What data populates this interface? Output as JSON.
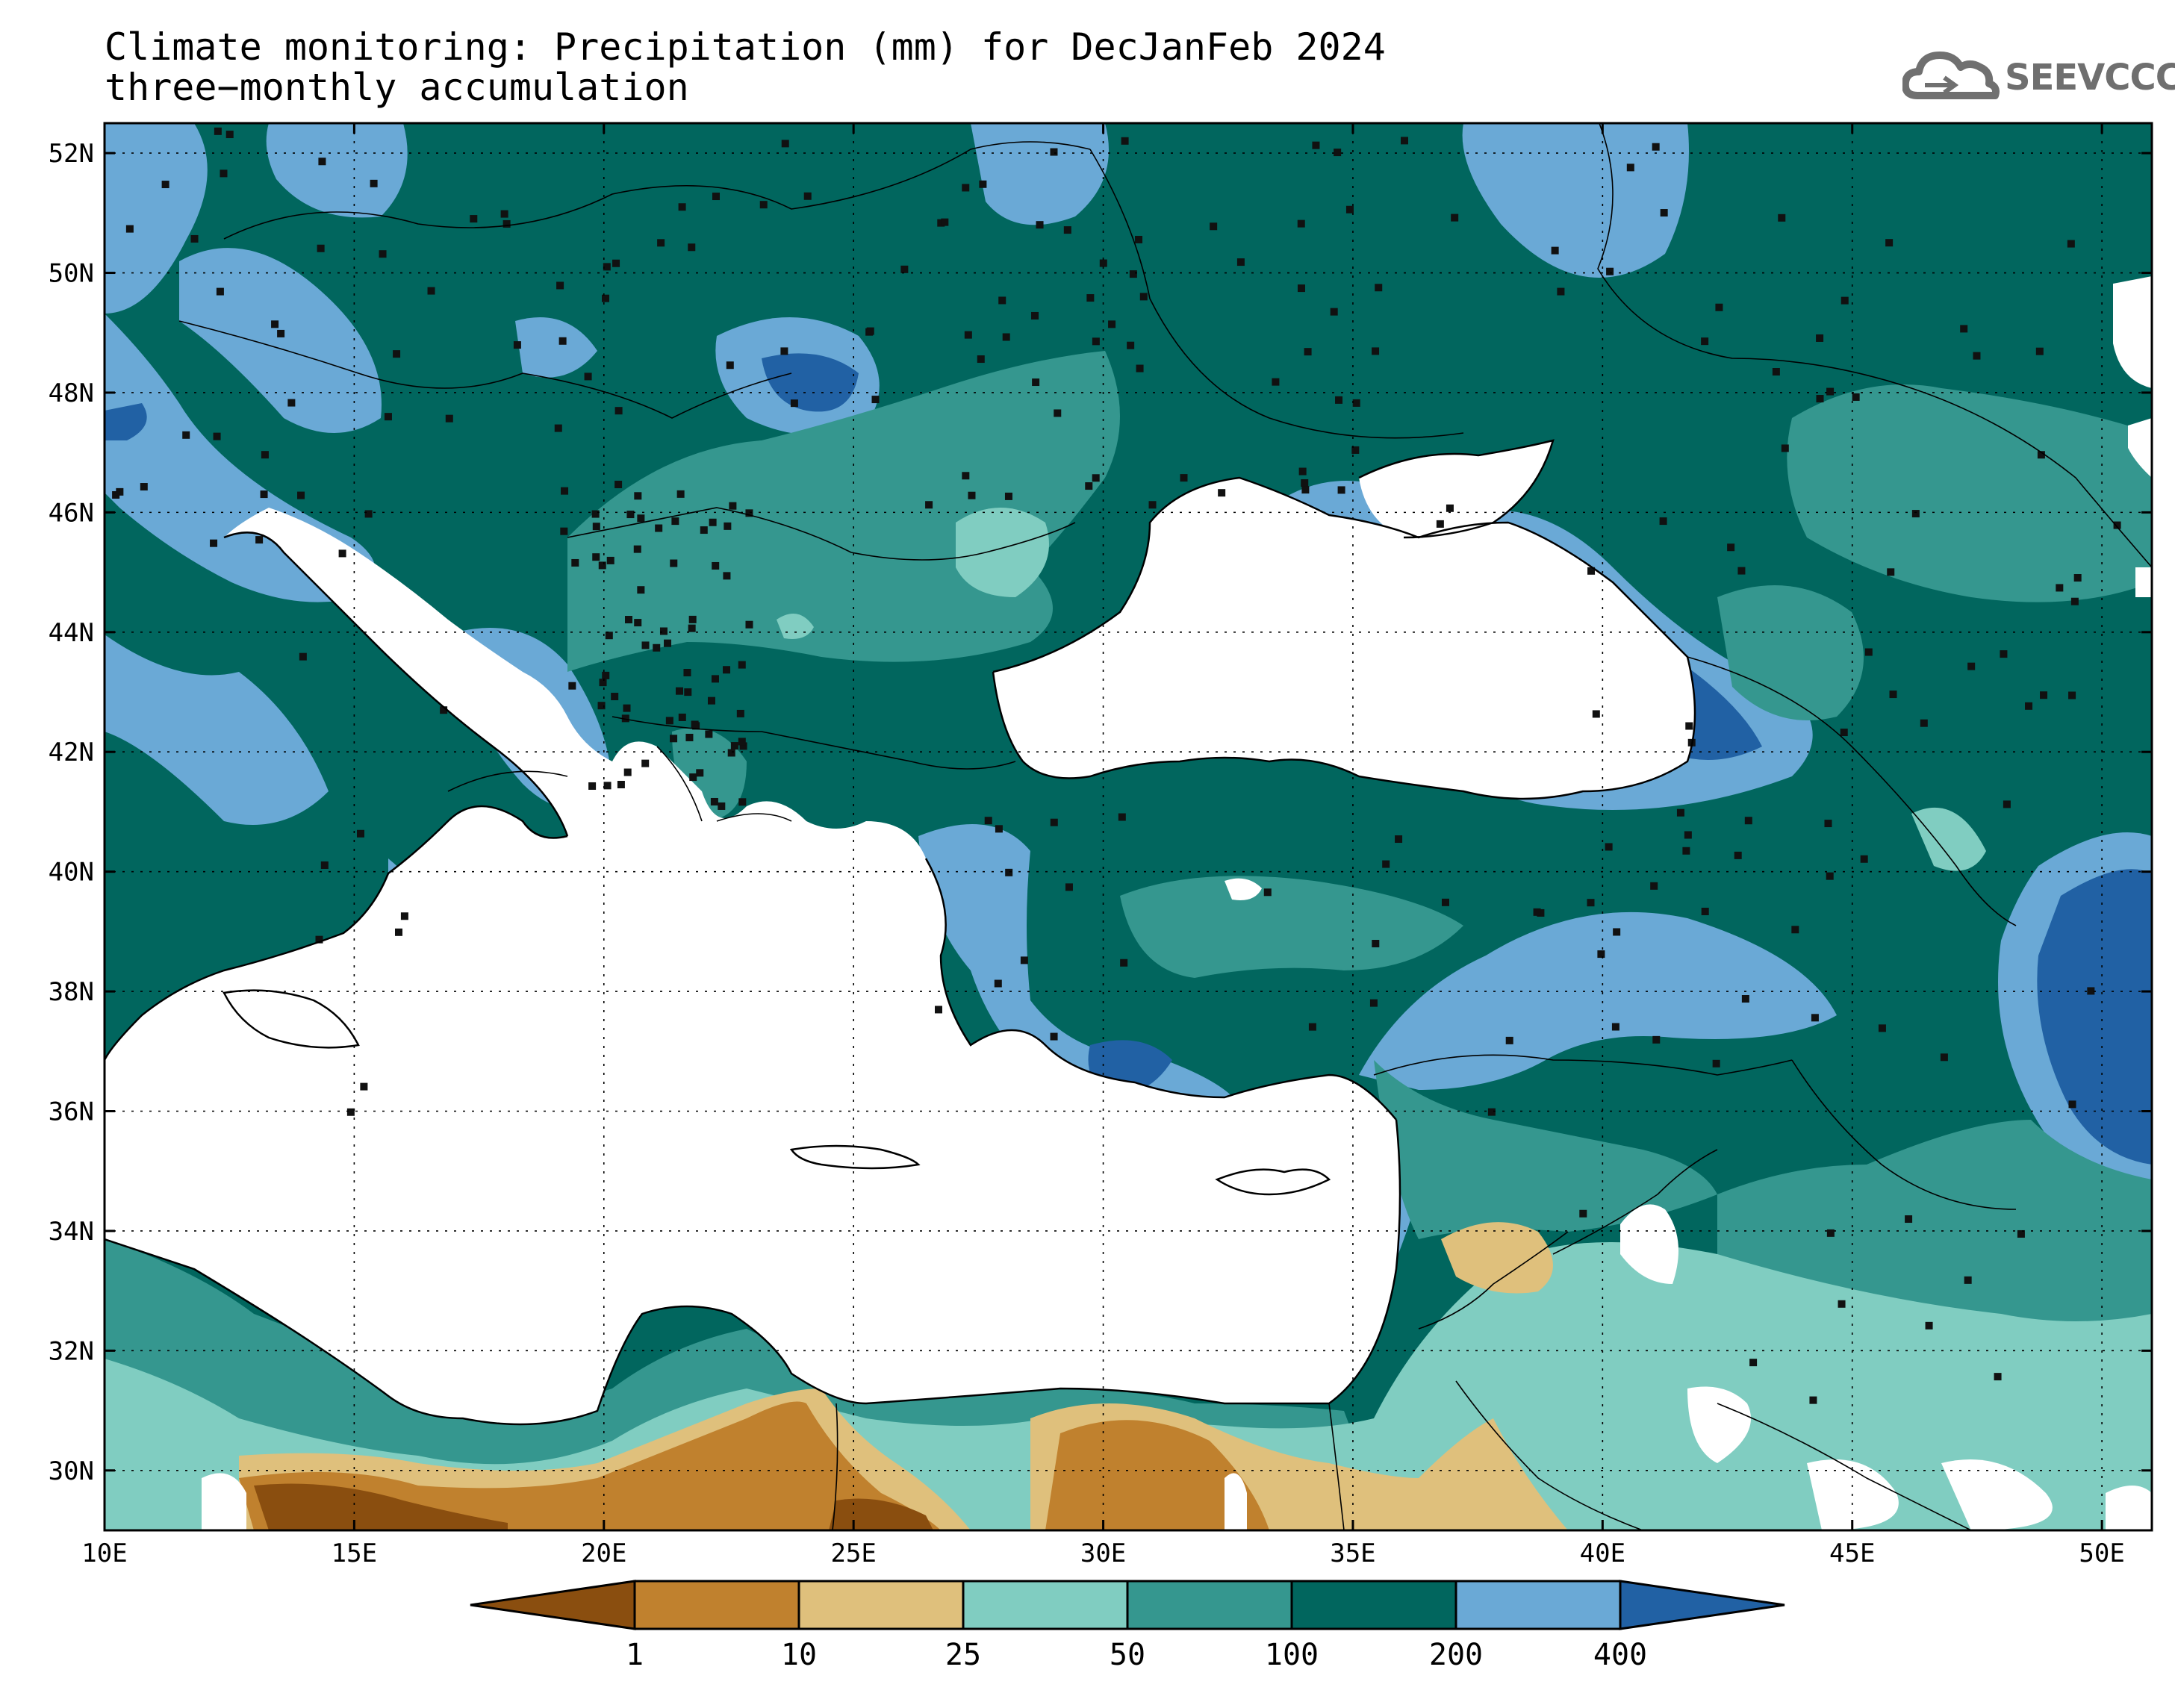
{
  "title": {
    "line1": "Climate monitoring: Precipitation (mm) for DecJanFeb 2024",
    "line2": "three−monthly accumulation"
  },
  "logo": {
    "text": "SEEVCCC",
    "icon": "cloud-icon"
  },
  "map": {
    "lon_range": [
      10,
      51
    ],
    "lat_range": [
      29,
      52.5
    ],
    "x_ticks": [
      {
        "value": 10,
        "label": "10E"
      },
      {
        "value": 15,
        "label": "15E"
      },
      {
        "value": 20,
        "label": "20E"
      },
      {
        "value": 25,
        "label": "25E"
      },
      {
        "value": 30,
        "label": "30E"
      },
      {
        "value": 35,
        "label": "35E"
      },
      {
        "value": 40,
        "label": "40E"
      },
      {
        "value": 45,
        "label": "45E"
      },
      {
        "value": 50,
        "label": "50E"
      }
    ],
    "y_ticks": [
      {
        "value": 30,
        "label": "30N"
      },
      {
        "value": 32,
        "label": "32N"
      },
      {
        "value": 34,
        "label": "34N"
      },
      {
        "value": 36,
        "label": "36N"
      },
      {
        "value": 38,
        "label": "38N"
      },
      {
        "value": 40,
        "label": "40N"
      },
      {
        "value": 42,
        "label": "42N"
      },
      {
        "value": 44,
        "label": "44N"
      },
      {
        "value": 46,
        "label": "46N"
      },
      {
        "value": 48,
        "label": "48N"
      },
      {
        "value": 50,
        "label": "50N"
      },
      {
        "value": 52,
        "label": "52N"
      }
    ],
    "grid": "dotted",
    "sea_color": "#ffffff",
    "dominant_class_color": "#006b5e"
  },
  "colorbar": {
    "orientation": "horizontal",
    "position": "bottom",
    "thresholds": [
      "1",
      "10",
      "25",
      "50",
      "100",
      "200",
      "400"
    ],
    "colors": [
      "#8a4e0f",
      "#c0812e",
      "#dfc07c",
      "#80cdc1",
      "#35978f",
      "#01665e",
      "#6aa9d6",
      "#2161a4"
    ]
  }
}
